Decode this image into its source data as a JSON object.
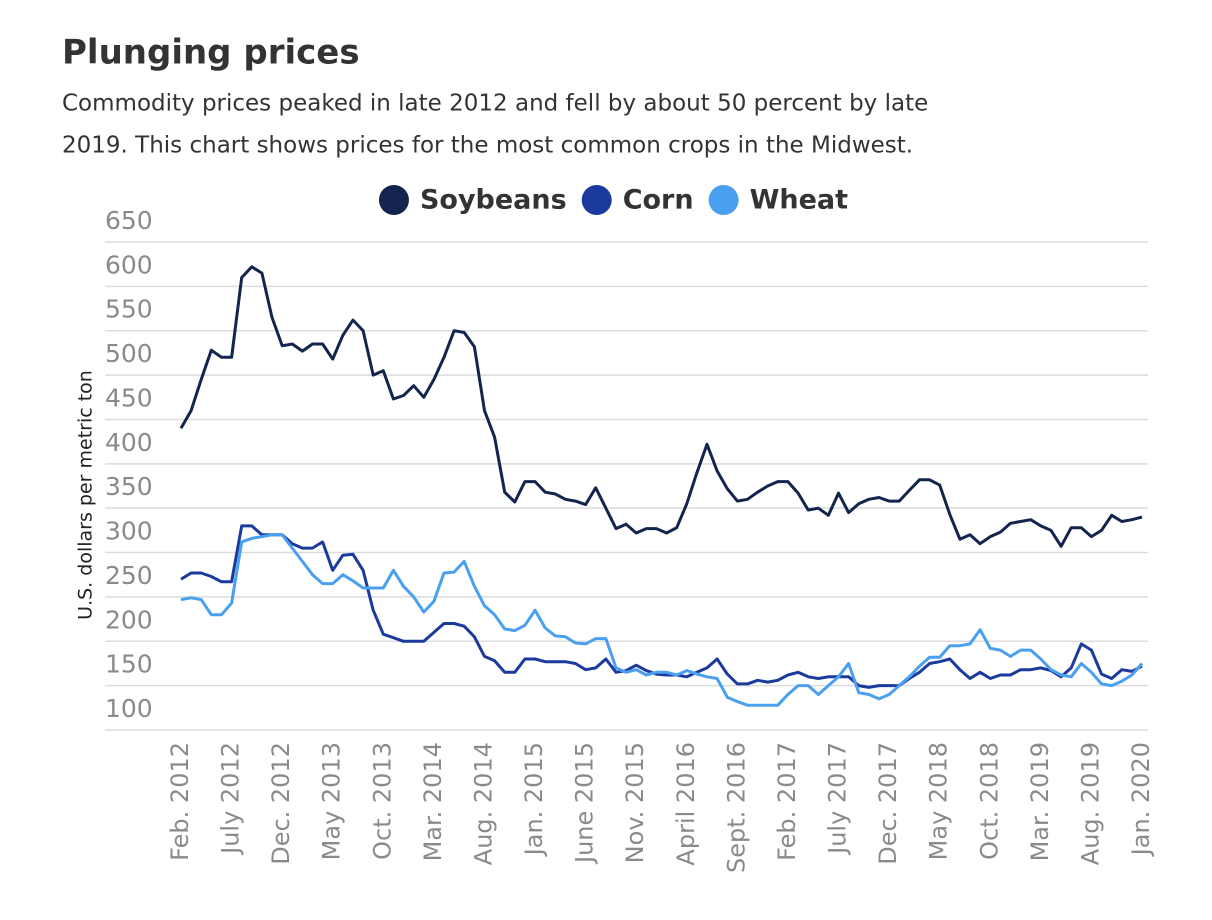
{
  "chart_data": {
    "type": "line",
    "title": "Plunging prices",
    "subtitle": [
      "Commodity prices peaked in late 2012 and fell by about 50 percent by late",
      "2019. This chart shows prices for the most common crops in the Midwest."
    ],
    "ylabel": "U.S. dollars per metric ton",
    "categories": [
      "Feb. 2012",
      null,
      null,
      null,
      null,
      "July 2012",
      null,
      null,
      null,
      null,
      "Dec. 2012",
      null,
      null,
      null,
      null,
      "May 2013",
      null,
      null,
      null,
      null,
      "Oct. 2013",
      null,
      null,
      null,
      null,
      "Mar. 2014",
      null,
      null,
      null,
      null,
      "Aug. 2014",
      null,
      null,
      null,
      null,
      "Jan. 2015",
      null,
      null,
      null,
      null,
      "June 2015",
      null,
      null,
      null,
      null,
      "Nov. 2015",
      null,
      null,
      null,
      null,
      "April 2016",
      null,
      null,
      null,
      null,
      "Sept. 2016",
      null,
      null,
      null,
      null,
      "Feb. 2017",
      null,
      null,
      null,
      null,
      "July 2017",
      null,
      null,
      null,
      null,
      "Dec. 2017",
      null,
      null,
      null,
      null,
      "May 2018",
      null,
      null,
      null,
      null,
      "Oct. 2018",
      null,
      null,
      null,
      null,
      "Mar. 2019",
      null,
      null,
      null,
      null,
      "Aug. 2019",
      null,
      null,
      null,
      null,
      "Jan. 2020"
    ],
    "series": [
      {
        "name": "Soybeans",
        "color": "#13244e",
        "values": [
          440,
          460,
          495,
          528,
          520,
          520,
          610,
          622,
          615,
          565,
          533,
          535,
          527,
          535,
          535,
          518,
          545,
          562,
          550,
          500,
          505,
          473,
          477,
          488,
          475,
          495,
          520,
          550,
          548,
          532,
          460,
          430,
          368,
          357,
          380,
          380,
          368,
          366,
          360,
          358,
          354,
          373,
          350,
          327,
          332,
          322,
          327,
          327,
          322,
          328,
          355,
          390,
          422,
          392,
          372,
          358,
          360,
          368,
          375,
          380,
          380,
          367,
          348,
          350,
          342,
          367,
          345,
          355,
          360,
          362,
          358,
          358,
          370,
          382,
          382,
          376,
          343,
          315,
          320,
          310,
          318,
          323,
          333,
          335,
          337,
          330,
          325,
          307,
          328,
          328,
          318,
          325,
          342,
          335,
          337,
          340
        ]
      },
      {
        "name": "Corn",
        "color": "#1a3a9e",
        "values": [
          270,
          277,
          277,
          273,
          267,
          267,
          330,
          330,
          320,
          320,
          320,
          310,
          305,
          305,
          312,
          280,
          297,
          298,
          280,
          235,
          208,
          204,
          200,
          200,
          200,
          210,
          220,
          220,
          217,
          205,
          183,
          178,
          165,
          165,
          180,
          180,
          177,
          177,
          177,
          175,
          168,
          170,
          180,
          165,
          167,
          173,
          167,
          163,
          162,
          162,
          160,
          165,
          170,
          180,
          163,
          152,
          152,
          156,
          154,
          156,
          162,
          165,
          160,
          158,
          160,
          160,
          160,
          150,
          148,
          150,
          150,
          150,
          158,
          165,
          175,
          177,
          180,
          168,
          158,
          165,
          158,
          162,
          162,
          168,
          168,
          170,
          167,
          160,
          170,
          197,
          190,
          163,
          158,
          168,
          166,
          172
        ]
      },
      {
        "name": "Wheat",
        "color": "#4a9ff0",
        "values": [
          247,
          249,
          247,
          230,
          230,
          243,
          312,
          316,
          318,
          320,
          320,
          305,
          290,
          275,
          265,
          265,
          275,
          268,
          260,
          260,
          260,
          280,
          262,
          250,
          233,
          245,
          277,
          278,
          290,
          262,
          240,
          230,
          214,
          212,
          218,
          235,
          215,
          206,
          205,
          198,
          197,
          203,
          203,
          170,
          165,
          168,
          162,
          165,
          165,
          162,
          167,
          163,
          160,
          158,
          137,
          132,
          128,
          128,
          128,
          128,
          140,
          150,
          150,
          140,
          150,
          160,
          175,
          142,
          140,
          135,
          140,
          150,
          160,
          172,
          182,
          182,
          195,
          195,
          197,
          213,
          192,
          190,
          183,
          190,
          190,
          180,
          168,
          162,
          160,
          175,
          165,
          152,
          150,
          155,
          162,
          175
        ]
      }
    ],
    "ylim": [
      100,
      650
    ],
    "yticks": [
      100,
      150,
      200,
      250,
      300,
      350,
      400,
      450,
      500,
      550,
      600,
      650
    ],
    "grid": true,
    "legend": "top"
  }
}
